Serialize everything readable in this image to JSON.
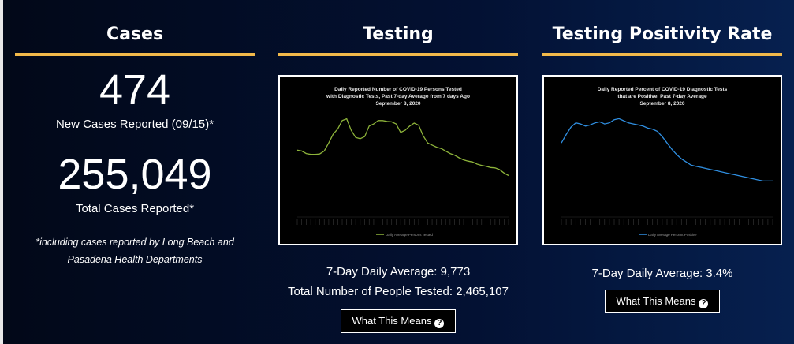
{
  "cases": {
    "title": "Cases",
    "new_cases": "474",
    "new_cases_label": "New Cases Reported (09/15)*",
    "total_cases": "255,049",
    "total_cases_label": "Total Cases Reported*",
    "note_line1": "*including cases reported by Long Beach and",
    "note_line2": "Pasadena Health Departments"
  },
  "testing": {
    "title": "Testing",
    "chart_title_1": "Daily Reported Number of COVID-19 Persons Tested",
    "chart_title_2": "with Diagnostic Tests, Past 7-day Average from 7 days Ago",
    "chart_title_3": "September 8, 2020",
    "legend": "Daily Average Persons Tested",
    "daily_average": "7-Day Daily Average: 9,773",
    "total_tested": "Total Number of People Tested: 2,465,107",
    "button_label": "What This Means"
  },
  "positivity": {
    "title": "Testing Positivity Rate",
    "chart_title_1": "Daily Reported Percent of COVID-19 Diagnostic Tests",
    "chart_title_2": "that are Positive, Past 7-day Average",
    "chart_title_3": "September 8, 2020",
    "legend": "Daily Average Percent Positive",
    "daily_average": "7-Day Daily Average: 3.4%",
    "button_label": "What This Means"
  },
  "colors": {
    "accent_rule": "#f2b94a",
    "testing_line": "#8db33a",
    "positivity_line": "#2f8ee0"
  },
  "icons": {
    "help": "question-circle-icon"
  },
  "chart_data": [
    {
      "type": "line",
      "title": "Daily Reported Number of COVID-19 Persons Tested with Diagnostic Tests, Past 7-day Average from 7 days Ago September 8, 2020",
      "series": [
        {
          "name": "Daily Average Persons Tested",
          "values": [
            15800,
            15600,
            15000,
            14800,
            14800,
            14900,
            15600,
            17500,
            19600,
            20800,
            22800,
            23200,
            20500,
            18800,
            18500,
            19000,
            21500,
            22000,
            22800,
            22800,
            22600,
            22500,
            22000,
            20000,
            20500,
            21500,
            22200,
            21700,
            19200,
            17500,
            17000,
            16500,
            16200,
            15600,
            15000,
            14600,
            14000,
            13500,
            13200,
            13000,
            12500,
            12200,
            12000,
            11700,
            11600,
            11200,
            10400,
            9800
          ]
        }
      ],
      "ylim": [
        0,
        25000
      ]
    },
    {
      "type": "line",
      "title": "Daily Reported Percent of COVID-19 Diagnostic Tests that are Positive, Past 7-day Average September 8, 2020",
      "series": [
        {
          "name": "Daily Average Percent Positive",
          "values": [
            7.0,
            7.8,
            8.5,
            8.9,
            8.8,
            8.6,
            8.7,
            8.9,
            9.0,
            8.8,
            8.9,
            9.2,
            9.3,
            9.1,
            8.9,
            8.8,
            8.7,
            8.6,
            8.4,
            8.3,
            8.1,
            7.6,
            7.0,
            6.4,
            5.9,
            5.5,
            5.2,
            4.9,
            4.8,
            4.7,
            4.6,
            4.5,
            4.4,
            4.3,
            4.2,
            4.1,
            4.0,
            3.9,
            3.8,
            3.7,
            3.6,
            3.5,
            3.4,
            3.4,
            3.4
          ]
        }
      ],
      "ylim": [
        0,
        10
      ]
    }
  ]
}
